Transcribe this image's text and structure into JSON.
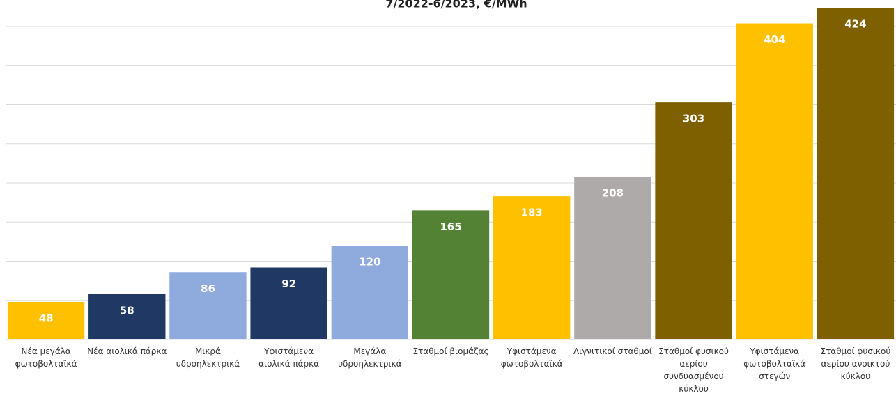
{
  "chart_data": {
    "type": "bar",
    "title": "7/2022-6/2023, €/MWh",
    "categories": [
      "Νέα μεγάλα φωτοβολταϊκά",
      "Νέα αιολικά πάρκα",
      "Μικρά υδροηλεκτρικά",
      "Υφιστάμενα αιολικά πάρκα",
      "Μεγάλα υδροηλεκτρικά",
      "Σταθμοί βιομάζας",
      "Υφιστάμενα φωτοβολταϊκά",
      "Λιγνιτικοί σταθμοί",
      "Σταθμοί φυσικού αερίου συνδυασμένου κύκλου",
      "Υφιστάμενα φωτοβολταϊκά στεγών",
      "Σταθμοί φυσικού αερίου ανοικτού κύκλου"
    ],
    "values": [
      48,
      58,
      86,
      92,
      120,
      165,
      183,
      208,
      303,
      404,
      424
    ],
    "colors": [
      "#FFC000",
      "#203864",
      "#8FAADC",
      "#203864",
      "#8FAADC",
      "#548235",
      "#FFC000",
      "#AEAAAA",
      "#7F6000",
      "#FFC000",
      "#7F6000"
    ],
    "ylim": [
      0,
      450
    ],
    "yticks": [
      0,
      50,
      100,
      150,
      200,
      250,
      300,
      350,
      400
    ],
    "grid": true
  }
}
